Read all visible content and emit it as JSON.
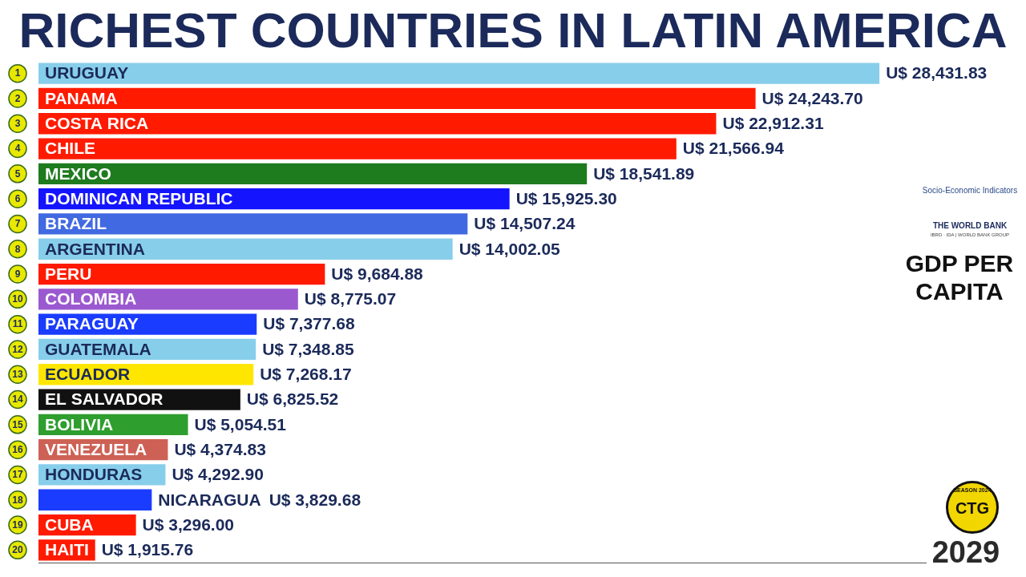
{
  "chart_data": {
    "type": "bar",
    "orientation": "horizontal",
    "title": "RICHEST COUNTRIES IN LATIN AMERICA",
    "categories": [
      "URUGUAY",
      "PANAMA",
      "COSTA RICA",
      "CHILE",
      "MEXICO",
      "DOMINICAN REPUBLIC",
      "BRAZIL",
      "ARGENTINA",
      "PERU",
      "COLOMBIA",
      "PARAGUAY",
      "GUATEMALA",
      "ECUADOR",
      "EL SALVADOR",
      "BOLIVIA",
      "VENEZUELA",
      "HONDURAS",
      "NICARAGUA",
      "CUBA",
      "HAITI"
    ],
    "ranks": [
      1,
      2,
      3,
      4,
      5,
      6,
      7,
      8,
      9,
      10,
      11,
      12,
      13,
      14,
      15,
      16,
      17,
      18,
      19,
      20
    ],
    "values": [
      28431.83,
      24243.7,
      22912.31,
      21566.94,
      18541.89,
      15925.3,
      14507.24,
      14002.05,
      9684.88,
      8775.07,
      7377.68,
      7348.85,
      7268.17,
      6825.52,
      5054.51,
      4374.83,
      4292.9,
      3829.68,
      3296.0,
      1915.76
    ],
    "value_labels": [
      "U$ 28,431.83",
      "U$ 24,243.70",
      "U$ 22,912.31",
      "U$ 21,566.94",
      "U$ 18,541.89",
      "U$ 15,925.30",
      "U$ 14,507.24",
      "U$ 14,002.05",
      "U$ 9,684.88",
      "U$ 8,775.07",
      "U$ 7,377.68",
      "U$ 7,348.85",
      "U$ 7,268.17",
      "U$ 6,825.52",
      "U$ 5,054.51",
      "U$ 4,374.83",
      "U$ 4,292.90",
      "U$ 3,829.68",
      "U$ 3,296.00",
      "U$ 1,915.76"
    ],
    "colors": [
      "#87ceeb",
      "#ff1a00",
      "#ff1a00",
      "#ff1a00",
      "#1e7b1e",
      "#1414ff",
      "#4169e1",
      "#87ceeb",
      "#ff1a00",
      "#9b59d0",
      "#1a3cff",
      "#87ceeb",
      "#ffe600",
      "#111111",
      "#2e9e2e",
      "#cd6155",
      "#87ceeb",
      "#1a3cff",
      "#ff1a00",
      "#ff1a00"
    ],
    "xlim": [
      0,
      30000
    ],
    "grid": false,
    "tick_labels": false,
    "data_labels": true,
    "annotations": {
      "source": "Socio-Economic Indicators",
      "source_org": "THE WORLD BANK",
      "source_org_sub": "IBRD · IDA | WORLD BANK GROUP",
      "metric": "GDP PER CAPITA",
      "year": "2029",
      "badge": "CTG",
      "badge_season": "SEASON 2024"
    }
  }
}
